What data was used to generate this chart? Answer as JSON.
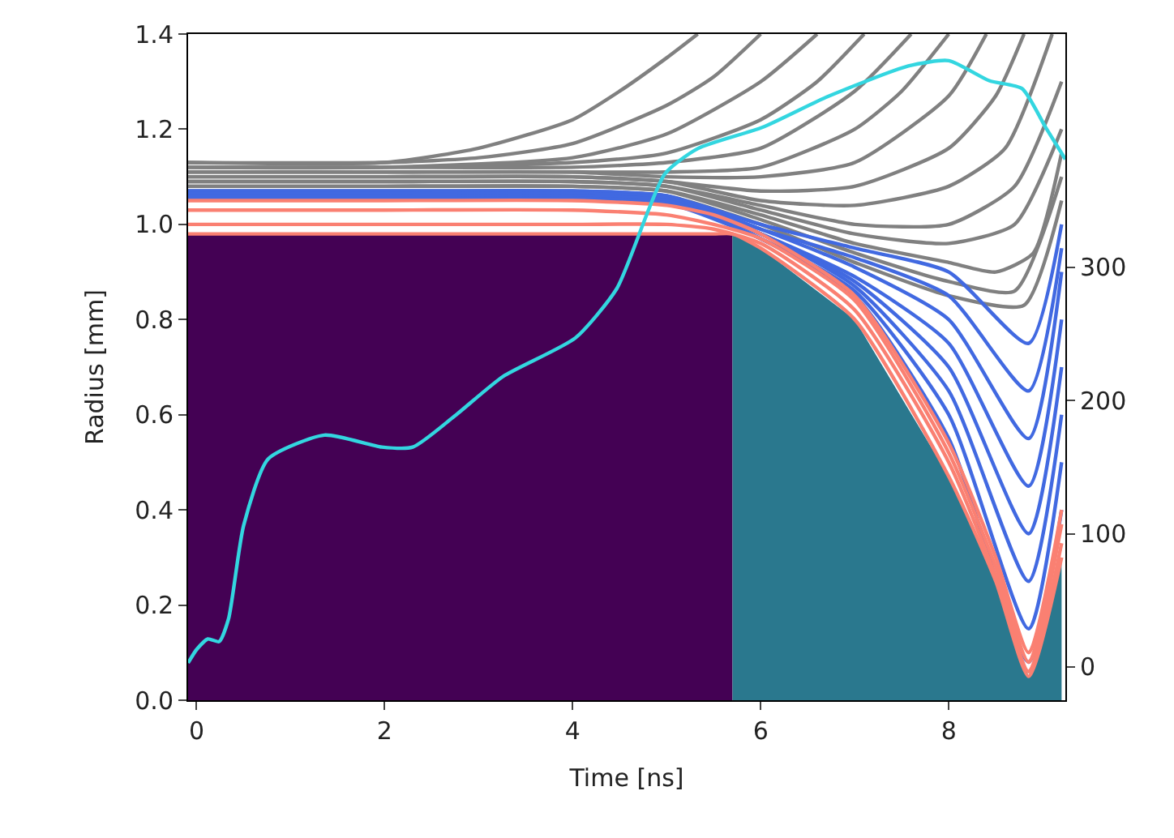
{
  "chart_data": {
    "type": "line",
    "xlabel": "Time [ns]",
    "ylabel": "Radius [mm]",
    "marker": "none",
    "xlim": [
      -0.09,
      9.24
    ],
    "xticks": [
      0,
      2,
      4,
      6,
      8
    ],
    "ylim": [
      0,
      1.4
    ],
    "yticks": [
      {
        "value": 0,
        "label": "0.0"
      },
      {
        "value": 0.2,
        "label": "0.2"
      },
      {
        "value": 0.4,
        "label": "0.4"
      },
      {
        "value": 0.6,
        "label": "0.6"
      },
      {
        "value": 0.8,
        "label": "0.8"
      },
      {
        "value": 1.0,
        "label": "1.0"
      },
      {
        "value": 1.2,
        "label": "1.2"
      },
      {
        "value": 1.4,
        "label": "1.4"
      }
    ],
    "y2lim": [
      -25,
      475
    ],
    "y2ticks": [
      0,
      100,
      200,
      300
    ],
    "series": [
      {
        "type": "area",
        "color": "#440154",
        "x": [
          -0.09,
          5.7
        ],
        "values": [
          0.98,
          0.98
        ]
      },
      {
        "type": "area",
        "color": "#2a788e",
        "x": [
          5.7,
          6,
          7,
          8,
          8.5,
          8.85,
          9.2
        ],
        "values": [
          0.98,
          0.95,
          0.8,
          0.47,
          0.25,
          0.05,
          0.3
        ]
      },
      {
        "color": "#808080",
        "x": [
          -0.09,
          2,
          3,
          4,
          4.5,
          5,
          5.33
        ],
        "values": [
          1.13,
          1.13,
          1.16,
          1.22,
          1.28,
          1.35,
          1.4
        ]
      },
      {
        "color": "#808080",
        "x": [
          -0.09,
          2,
          3,
          4,
          5,
          5.5,
          6
        ],
        "values": [
          1.13,
          1.13,
          1.14,
          1.17,
          1.25,
          1.31,
          1.4
        ]
      },
      {
        "color": "#808080",
        "x": [
          -0.09,
          2,
          4,
          5,
          6,
          6.6
        ],
        "values": [
          1.12,
          1.12,
          1.14,
          1.19,
          1.3,
          1.4
        ]
      },
      {
        "color": "#808080",
        "x": [
          -0.09,
          2,
          4,
          5,
          6,
          6.6,
          7.1
        ],
        "values": [
          1.12,
          1.12,
          1.13,
          1.15,
          1.22,
          1.3,
          1.4
        ]
      },
      {
        "color": "#808080",
        "x": [
          -0.09,
          2,
          4,
          5,
          6,
          7,
          7.6
        ],
        "values": [
          1.12,
          1.12,
          1.12,
          1.13,
          1.16,
          1.28,
          1.4
        ]
      },
      {
        "color": "#808080",
        "x": [
          -0.09,
          2,
          4,
          5,
          6,
          7,
          7.5,
          8
        ],
        "values": [
          1.11,
          1.11,
          1.11,
          1.11,
          1.12,
          1.2,
          1.28,
          1.4
        ]
      },
      {
        "color": "#808080",
        "x": [
          -0.09,
          2,
          4,
          5,
          6,
          7,
          8,
          8.4
        ],
        "values": [
          1.11,
          1.11,
          1.11,
          1.1,
          1.1,
          1.13,
          1.27,
          1.4
        ]
      },
      {
        "color": "#808080",
        "x": [
          -0.09,
          2,
          4,
          5,
          6,
          7,
          8,
          8.5,
          8.8
        ],
        "values": [
          1.1,
          1.1,
          1.1,
          1.09,
          1.07,
          1.08,
          1.16,
          1.27,
          1.4
        ]
      },
      {
        "color": "#808080",
        "x": [
          -0.09,
          2,
          4,
          5,
          6,
          7,
          8,
          8.6,
          9.1
        ],
        "values": [
          1.1,
          1.1,
          1.1,
          1.09,
          1.05,
          1.04,
          1.08,
          1.16,
          1.4
        ]
      },
      {
        "color": "#808080",
        "x": [
          -0.09,
          2,
          4,
          5,
          6,
          7,
          8,
          8.7,
          9.2
        ],
        "values": [
          1.09,
          1.09,
          1.09,
          1.08,
          1.04,
          1.0,
          1.0,
          1.08,
          1.3
        ]
      },
      {
        "color": "#808080",
        "x": [
          -0.09,
          2,
          4,
          5,
          6,
          7,
          8,
          8.7,
          9.2
        ],
        "values": [
          1.09,
          1.09,
          1.09,
          1.08,
          1.03,
          0.98,
          0.96,
          1.0,
          1.2
        ]
      },
      {
        "color": "#808080",
        "x": [
          -0.09,
          2,
          4,
          5,
          6,
          7,
          8,
          8.5,
          8.9,
          9.2
        ],
        "values": [
          1.08,
          1.08,
          1.08,
          1.07,
          1.02,
          0.96,
          0.92,
          0.9,
          0.94,
          1.15
        ]
      },
      {
        "color": "#808080",
        "x": [
          -0.09,
          2,
          4,
          5,
          6,
          7,
          8,
          8.7,
          9.2
        ],
        "values": [
          1.08,
          1.08,
          1.08,
          1.07,
          1.01,
          0.94,
          0.88,
          0.86,
          1.1
        ]
      },
      {
        "color": "#808080",
        "x": [
          -0.09,
          2,
          4,
          5,
          6,
          7,
          8,
          8.8,
          9.2
        ],
        "values": [
          1.07,
          1.07,
          1.07,
          1.06,
          1.0,
          0.92,
          0.85,
          0.83,
          1.05
        ]
      },
      {
        "color": "#4169e1",
        "x": [
          -0.09,
          2,
          4,
          5,
          6,
          7,
          8,
          8.85,
          9.2
        ],
        "values": [
          1.07,
          1.07,
          1.07,
          1.06,
          1.0,
          0.95,
          0.9,
          0.75,
          1.0
        ]
      },
      {
        "color": "#4169e1",
        "x": [
          -0.09,
          2,
          4,
          5,
          6,
          7,
          8,
          8.85,
          9.2
        ],
        "values": [
          1.07,
          1.07,
          1.07,
          1.06,
          0.99,
          0.93,
          0.85,
          0.65,
          0.95
        ]
      },
      {
        "color": "#4169e1",
        "x": [
          -0.09,
          2,
          4,
          5,
          6,
          7,
          8,
          8.85,
          9.2
        ],
        "values": [
          1.065,
          1.065,
          1.065,
          1.055,
          0.99,
          0.91,
          0.8,
          0.55,
          0.9
        ]
      },
      {
        "color": "#4169e1",
        "x": [
          -0.09,
          2,
          4,
          5,
          6,
          7,
          8,
          8.85,
          9.2
        ],
        "values": [
          1.065,
          1.065,
          1.065,
          1.055,
          0.98,
          0.89,
          0.75,
          0.45,
          0.8
        ]
      },
      {
        "color": "#4169e1",
        "x": [
          -0.09,
          2,
          4,
          5,
          6,
          7,
          8,
          8.85,
          9.2
        ],
        "values": [
          1.06,
          1.06,
          1.06,
          1.05,
          0.98,
          0.88,
          0.7,
          0.35,
          0.7
        ]
      },
      {
        "color": "#4169e1",
        "x": [
          -0.09,
          2,
          4,
          5,
          6,
          7,
          8,
          8.85,
          9.2
        ],
        "values": [
          1.06,
          1.06,
          1.06,
          1.05,
          0.98,
          0.87,
          0.65,
          0.25,
          0.6
        ]
      },
      {
        "color": "#4169e1",
        "x": [
          -0.09,
          2,
          4,
          5,
          6,
          7,
          8,
          8.85,
          9.2
        ],
        "values": [
          1.06,
          1.06,
          1.06,
          1.05,
          0.97,
          0.86,
          0.6,
          0.15,
          0.5
        ]
      },
      {
        "color": "#4169e1",
        "x": [
          -0.09,
          2,
          4,
          5,
          6,
          7,
          8,
          8.85,
          9.2
        ],
        "values": [
          1.055,
          1.055,
          1.055,
          1.045,
          0.97,
          0.85,
          0.55,
          0.08,
          0.4
        ]
      },
      {
        "color": "#fa8072",
        "x": [
          -0.09,
          2,
          4,
          5,
          5.5,
          6,
          7,
          8,
          8.5,
          8.85,
          9.2
        ],
        "values": [
          1.05,
          1.05,
          1.05,
          1.04,
          1.02,
          0.98,
          0.85,
          0.54,
          0.3,
          0.1,
          0.4
        ]
      },
      {
        "color": "#fa8072",
        "x": [
          -0.09,
          2,
          4,
          5,
          5.5,
          6,
          7,
          8,
          8.5,
          8.85,
          9.2
        ],
        "values": [
          1.03,
          1.03,
          1.03,
          1.02,
          1.0,
          0.97,
          0.84,
          0.52,
          0.28,
          0.08,
          0.37
        ]
      },
      {
        "color": "#fa8072",
        "x": [
          -0.09,
          2,
          4,
          5,
          5.5,
          6,
          7,
          8,
          8.5,
          8.85,
          9.2
        ],
        "values": [
          1.0,
          1.0,
          1.0,
          1.0,
          0.99,
          0.96,
          0.82,
          0.5,
          0.26,
          0.06,
          0.33
        ]
      },
      {
        "color": "#fa8072",
        "x": [
          -0.09,
          2,
          4,
          5,
          5.5,
          5.7,
          6,
          7,
          8,
          8.5,
          8.85,
          9.2
        ],
        "values": [
          0.98,
          0.98,
          0.98,
          0.98,
          0.98,
          0.98,
          0.95,
          0.8,
          0.47,
          0.25,
          0.05,
          0.3
        ]
      },
      {
        "color": "#33d6e0",
        "axis": "y2",
        "x": [
          -0.09,
          0,
          0.12,
          0.24,
          0.34,
          0.5,
          0.76,
          1.36,
          1.97,
          2.3,
          2.74,
          3.26,
          4.03,
          4.47,
          4.98,
          5.33,
          6.02,
          6.71,
          7.57,
          8,
          8.43,
          8.78,
          9.03,
          9.24
        ],
        "values": [
          3,
          13,
          21,
          19,
          36,
          106,
          156,
          174,
          165,
          165,
          188,
          218,
          247,
          284,
          370,
          389,
          405,
          428,
          451,
          455,
          440,
          434,
          405,
          381
        ]
      }
    ]
  }
}
